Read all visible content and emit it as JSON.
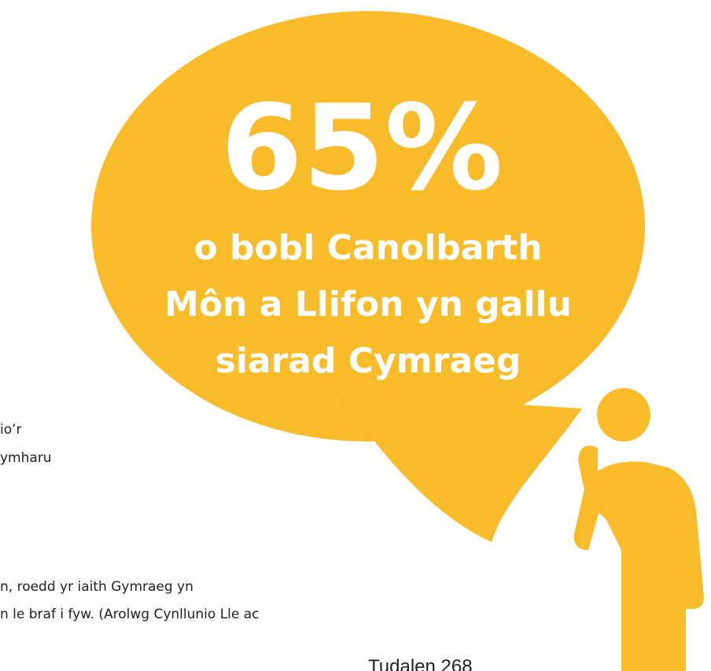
{
  "bubble": {
    "big": "65%",
    "lines": [
      "o bobl Canolbarth",
      "Môn a Llifon yn gallu",
      "siarad Cymraeg"
    ]
  },
  "body_fragments": [
    "io’r",
    "ymharu",
    "n, roedd yr iaith Gymraeg yn",
    "n le braf i fyw. (Arolwg Cynllunio Lle ac"
  ],
  "footer": "Tudalen 268"
}
